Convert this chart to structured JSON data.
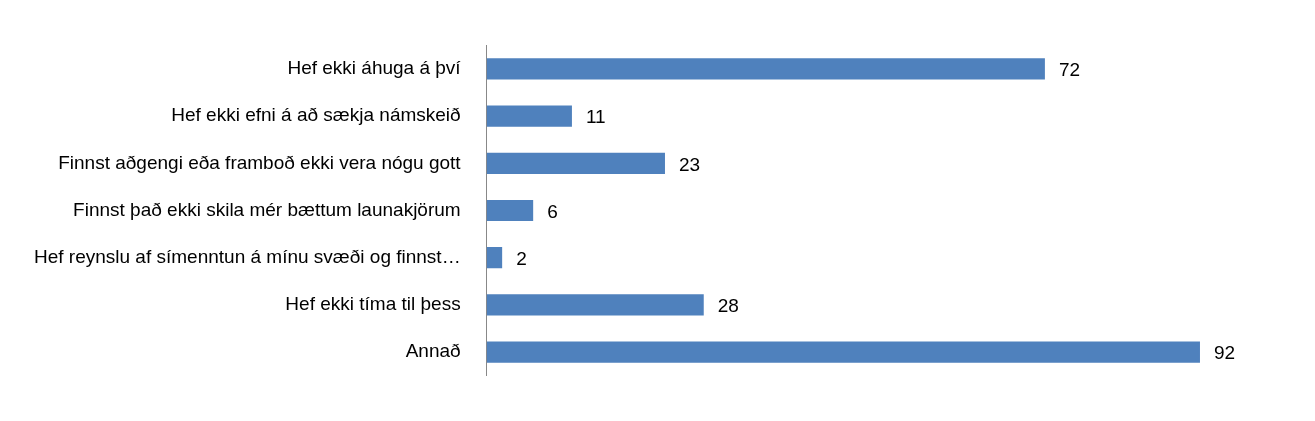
{
  "chart_data": {
    "type": "bar",
    "orientation": "horizontal",
    "categories": [
      "Hef ekki áhuga á því",
      "Hef ekki efni á að sækja námskeið",
      "Finnst aðgengi eða framboð ekki vera nógu gott",
      "Finnst það ekki skila mér bættum launakjörum",
      "Hef reynslu af símenntun á mínu svæði og finnst…",
      "Hef ekki tíma til þess",
      "Annað"
    ],
    "values": [
      72,
      11,
      23,
      6,
      2,
      28,
      92
    ],
    "color": "#4f81bd",
    "data_labels": true,
    "legend": false
  }
}
